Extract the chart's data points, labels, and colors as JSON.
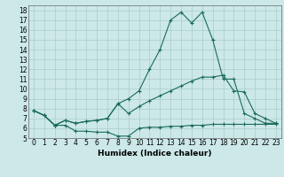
{
  "title": "",
  "xlabel": "Humidex (Indice chaleur)",
  "bg_color": "#cce8e8",
  "grid_color": "#aacccc",
  "line_color": "#1a6b5a",
  "xlim": [
    -0.5,
    23.5
  ],
  "ylim": [
    5,
    18.5
  ],
  "xticks": [
    0,
    1,
    2,
    3,
    4,
    5,
    6,
    7,
    8,
    9,
    10,
    11,
    12,
    13,
    14,
    15,
    16,
    17,
    18,
    19,
    20,
    21,
    22,
    23
  ],
  "yticks": [
    5,
    6,
    7,
    8,
    9,
    10,
    11,
    12,
    13,
    14,
    15,
    16,
    17,
    18
  ],
  "series1_x": [
    0,
    1,
    2,
    3,
    4,
    5,
    6,
    7,
    8,
    9,
    10,
    11,
    12,
    13,
    14,
    15,
    16,
    17,
    18,
    19,
    20,
    21,
    22,
    23
  ],
  "series1_y": [
    7.8,
    7.3,
    6.3,
    6.3,
    5.7,
    5.7,
    5.6,
    5.6,
    5.2,
    5.2,
    6.0,
    6.1,
    6.1,
    6.2,
    6.2,
    6.3,
    6.3,
    6.4,
    6.4,
    6.4,
    6.4,
    6.4,
    6.4,
    6.4
  ],
  "series2_x": [
    0,
    1,
    2,
    3,
    4,
    5,
    6,
    7,
    8,
    9,
    10,
    11,
    12,
    13,
    14,
    15,
    16,
    17,
    18,
    19,
    20,
    21,
    22,
    23
  ],
  "series2_y": [
    7.8,
    7.3,
    6.3,
    6.8,
    6.5,
    6.7,
    6.8,
    7.0,
    8.5,
    7.5,
    8.2,
    8.8,
    9.3,
    9.8,
    10.3,
    10.8,
    11.2,
    11.2,
    11.4,
    9.8,
    9.7,
    7.5,
    7.0,
    6.5
  ],
  "series3_x": [
    0,
    1,
    2,
    3,
    4,
    5,
    6,
    7,
    8,
    9,
    10,
    11,
    12,
    13,
    14,
    15,
    16,
    17,
    18,
    19,
    20,
    21,
    22,
    23
  ],
  "series3_y": [
    7.8,
    7.3,
    6.3,
    6.8,
    6.5,
    6.7,
    6.8,
    7.0,
    8.5,
    9.0,
    9.8,
    12.0,
    14.0,
    17.0,
    17.8,
    16.7,
    17.8,
    15.0,
    11.0,
    11.0,
    7.5,
    7.0,
    6.5,
    6.5
  ],
  "font_size_ticks": 5.5,
  "font_size_xlabel": 6.5
}
